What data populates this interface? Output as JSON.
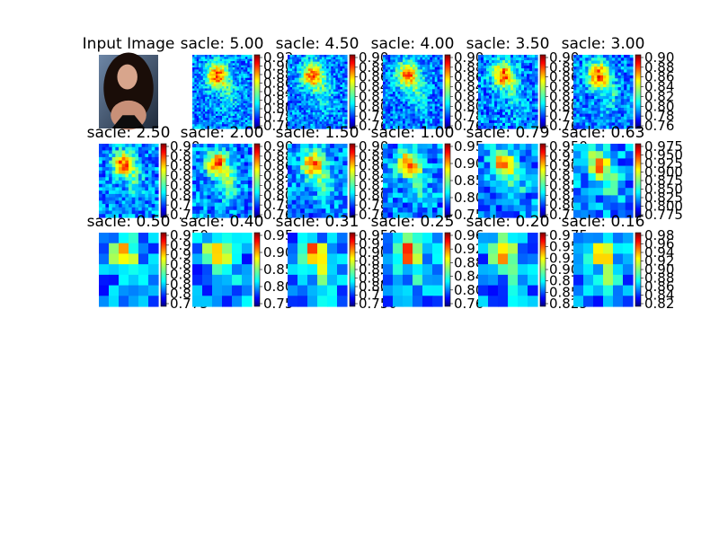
{
  "figure": {
    "panels": [
      {
        "title": "Input Image",
        "kind": "photo"
      },
      {
        "title": "sacle: 5.00",
        "kind": "heatmap",
        "ticks": [
          "0.92",
          "0.90",
          "0.88",
          "0.86",
          "0.84",
          "0.82",
          "0.80",
          "0.78",
          "0.76"
        ]
      },
      {
        "title": "sacle: 4.50",
        "kind": "heatmap",
        "ticks": [
          "0.90",
          "0.88",
          "0.86",
          "0.84",
          "0.82",
          "0.80",
          "0.78",
          "0.76"
        ]
      },
      {
        "title": "sacle: 4.00",
        "kind": "heatmap",
        "ticks": [
          "0.90",
          "0.88",
          "0.86",
          "0.84",
          "0.82",
          "0.80",
          "0.78",
          "0.76"
        ]
      },
      {
        "title": "sacle: 3.50",
        "kind": "heatmap",
        "ticks": [
          "0.90",
          "0.88",
          "0.86",
          "0.84",
          "0.82",
          "0.80",
          "0.78",
          "0.76"
        ]
      },
      {
        "title": "sacle: 3.00",
        "kind": "heatmap",
        "ticks": [
          "0.90",
          "0.88",
          "0.86",
          "0.84",
          "0.82",
          "0.80",
          "0.78",
          "0.76"
        ]
      },
      {
        "title": "sacle: 2.50",
        "kind": "heatmap",
        "ticks": [
          "0.90",
          "0.88",
          "0.86",
          "0.84",
          "0.82",
          "0.80",
          "0.78",
          "0.76"
        ]
      },
      {
        "title": "sacle: 2.00",
        "kind": "heatmap",
        "ticks": [
          "0.90",
          "0.88",
          "0.86",
          "0.84",
          "0.82",
          "0.80",
          "0.78",
          "0.76"
        ]
      },
      {
        "title": "sacle: 1.50",
        "kind": "heatmap",
        "ticks": [
          "0.90",
          "0.88",
          "0.86",
          "0.84",
          "0.82",
          "0.80",
          "0.78",
          "0.76"
        ]
      },
      {
        "title": "sacle: 1.00",
        "kind": "heatmap",
        "ticks": [
          "0.95",
          "0.90",
          "0.85",
          "0.80",
          "0.75"
        ]
      },
      {
        "title": "sacle: 0.79",
        "kind": "heatmap",
        "ticks": [
          "0.950",
          "0.925",
          "0.900",
          "0.875",
          "0.850",
          "0.825",
          "0.800",
          "0.775"
        ]
      },
      {
        "title": "sacle: 0.63",
        "kind": "heatmap",
        "ticks": [
          "0.975",
          "0.950",
          "0.925",
          "0.900",
          "0.875",
          "0.850",
          "0.825",
          "0.800",
          "0.775"
        ]
      },
      {
        "title": "sacle: 0.50",
        "kind": "heatmap",
        "ticks": [
          "0.950",
          "0.925",
          "0.900",
          "0.875",
          "0.850",
          "0.825",
          "0.800",
          "0.775"
        ]
      },
      {
        "title": "sacle: 0.40",
        "kind": "heatmap",
        "ticks": [
          "0.95",
          "0.90",
          "0.85",
          "0.80",
          "0.75"
        ]
      },
      {
        "title": "sacle: 0.31",
        "kind": "heatmap",
        "ticks": [
          "0.950",
          "0.925",
          "0.900",
          "0.875",
          "0.850",
          "0.825",
          "0.800",
          "0.775",
          "0.750"
        ]
      },
      {
        "title": "sacle: 0.25",
        "kind": "heatmap",
        "ticks": [
          "0.96",
          "0.92",
          "0.88",
          "0.84",
          "0.80",
          "0.76"
        ]
      },
      {
        "title": "sacle: 0.20",
        "kind": "heatmap",
        "ticks": [
          "0.975",
          "0.950",
          "0.925",
          "0.900",
          "0.875",
          "0.850",
          "0.825"
        ]
      },
      {
        "title": "sacle: 0.16",
        "kind": "heatmap",
        "ticks": [
          "0.98",
          "0.96",
          "0.94",
          "0.92",
          "0.90",
          "0.88",
          "0.86",
          "0.84",
          "0.82"
        ]
      }
    ]
  }
}
